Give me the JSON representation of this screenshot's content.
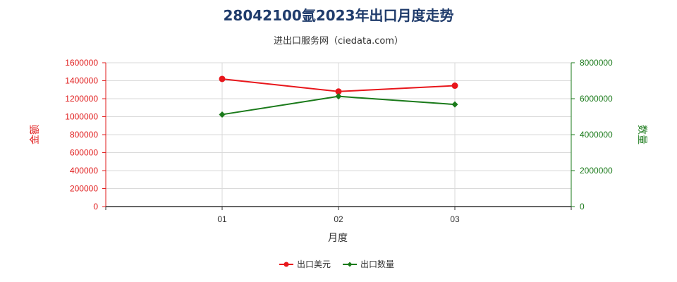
{
  "chart_data": {
    "type": "line",
    "title": "28042100氩2023年出口月度走势",
    "subtitle": "进出口服务网（ciedata.com）",
    "xlabel": "月度",
    "ylabel_left": "金额",
    "ylabel_right": "数量",
    "categories": [
      "01",
      "02",
      "03"
    ],
    "ylim_left": [
      0,
      1600000
    ],
    "ylim_right": [
      0,
      8000000
    ],
    "yticks_left": [
      "0",
      "200000",
      "400000",
      "600000",
      "800000",
      "1000000",
      "1200000",
      "1400000",
      "1600000"
    ],
    "yticks_right": [
      "0",
      "2000000",
      "4000000",
      "6000000",
      "8000000"
    ],
    "series": [
      {
        "name": "出口美元",
        "axis": "left",
        "color": "#e8161b",
        "marker": "circle",
        "values": [
          1420000,
          1280000,
          1345000
        ]
      },
      {
        "name": "出口数量",
        "axis": "right",
        "color": "#1a7a1a",
        "marker": "diamond",
        "values": [
          5120000,
          6130000,
          5680000
        ]
      }
    ],
    "grid": true,
    "legend": "bottom"
  }
}
